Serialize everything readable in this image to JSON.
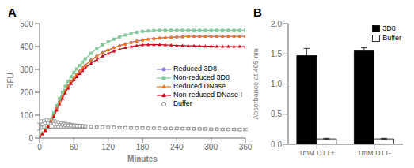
{
  "chart_data": [
    {
      "type": "line",
      "title": "A",
      "xlabel": "Minutes",
      "ylabel": "RFU",
      "x": [
        0,
        5,
        10,
        15,
        20,
        25,
        30,
        35,
        40,
        45,
        50,
        55,
        60,
        65,
        70,
        75,
        80,
        90,
        100,
        110,
        120,
        130,
        140,
        150,
        160,
        170,
        180,
        190,
        200,
        210,
        220,
        230,
        240,
        250,
        260,
        270,
        280,
        290,
        300,
        310,
        320,
        330,
        340,
        350,
        360
      ],
      "xlim": [
        0,
        360
      ],
      "ylim": [
        0,
        500
      ],
      "xticks": [
        0,
        60,
        120,
        180,
        240,
        300,
        360
      ],
      "yticks": [
        0,
        100,
        200,
        300,
        400,
        500
      ],
      "grid": false,
      "legend": "right",
      "series": [
        {
          "name": "Reduced 3D8",
          "color": "#8884d8",
          "marker": "pentagon",
          "line_style": "solid",
          "values": [
            10,
            20,
            35,
            55,
            75,
            100,
            130,
            158,
            183,
            207,
            228,
            248,
            265,
            279,
            292,
            306,
            318,
            340,
            358,
            373,
            385,
            395,
            404,
            411,
            418,
            424,
            428,
            432,
            435,
            437,
            439,
            440,
            442,
            443,
            444,
            444,
            444,
            444,
            444,
            444,
            444,
            444,
            444,
            444,
            444
          ]
        },
        {
          "name": "Non-reduced 3D8",
          "color": "#82ca9d",
          "marker": "square",
          "line_style": "solid",
          "values": [
            10,
            22,
            38,
            60,
            83,
            110,
            142,
            172,
            200,
            226,
            248,
            268,
            287,
            302,
            317,
            332,
            346,
            370,
            390,
            407,
            420,
            432,
            442,
            450,
            457,
            462,
            466,
            468,
            470,
            471,
            471,
            471,
            471,
            471,
            471,
            471,
            471,
            471,
            471,
            471,
            471,
            471,
            471,
            471,
            471
          ]
        },
        {
          "name": "Reduced DNase",
          "color": "#ff7300",
          "marker": "triangle",
          "line_style": "solid",
          "values": [
            10,
            20,
            35,
            55,
            75,
            100,
            130,
            158,
            183,
            207,
            228,
            248,
            265,
            279,
            292,
            306,
            318,
            340,
            358,
            373,
            385,
            395,
            404,
            411,
            418,
            424,
            428,
            432,
            435,
            437,
            439,
            440,
            442,
            443,
            444,
            444,
            444,
            444,
            444,
            444,
            444,
            444,
            444,
            444,
            444
          ]
        },
        {
          "name": "Non-reduced DNase I",
          "color": "#d0021b",
          "marker": "triangle",
          "line_style": "solid",
          "values": [
            8,
            18,
            32,
            50,
            70,
            94,
            122,
            149,
            174,
            197,
            218,
            237,
            254,
            268,
            281,
            294,
            306,
            326,
            343,
            358,
            370,
            380,
            388,
            395,
            400,
            404,
            407,
            408,
            408,
            408,
            407,
            406,
            405,
            404,
            403,
            403,
            402,
            401,
            401,
            400,
            400,
            400,
            400,
            400,
            400
          ]
        },
        {
          "name": "Buffer",
          "color": "#888888",
          "marker": "circle",
          "line_style": "none",
          "values": [
            50,
            60,
            65,
            65,
            63,
            62,
            60,
            58,
            57,
            56,
            55,
            54,
            53,
            52,
            52,
            51,
            50,
            49,
            48,
            47,
            46,
            46,
            45,
            45,
            44,
            44,
            44,
            43,
            43,
            43,
            42,
            42,
            42,
            41,
            41,
            40,
            40,
            40,
            39,
            39,
            38,
            38,
            38,
            37,
            37
          ],
          "errors": [
            15,
            20,
            22,
            22,
            20,
            18,
            16,
            15,
            13,
            12,
            11,
            10,
            9,
            9,
            8,
            8,
            8,
            7,
            7,
            6,
            6,
            6,
            5,
            5,
            5,
            5,
            5,
            5,
            5,
            5,
            5,
            5,
            5,
            5,
            5,
            5,
            5,
            5,
            5,
            5,
            5,
            5,
            5,
            5,
            5
          ]
        }
      ]
    },
    {
      "type": "bar",
      "title": "B",
      "ylabel": "Absorbance at 405 nm",
      "categories": [
        "1mM DTT+",
        "1mM DTT-"
      ],
      "ylim": [
        0,
        2.0
      ],
      "yticks": [
        {
          "value": 0,
          "label": "0.0"
        },
        0.5,
        {
          "value": 1,
          "label": "1.0"
        },
        1.5,
        {
          "value": 2,
          "label": "2.0"
        }
      ],
      "grid": false,
      "legend": "upper right",
      "series": [
        {
          "name": "3D8",
          "color": "#000000",
          "values": [
            1.47,
            1.55
          ],
          "errors": [
            0.12,
            0.05
          ]
        },
        {
          "name": "Buffer",
          "color": "#ffffff",
          "values": [
            0.09,
            0.09
          ],
          "errors": [
            0.01,
            0.01
          ]
        }
      ]
    }
  ]
}
